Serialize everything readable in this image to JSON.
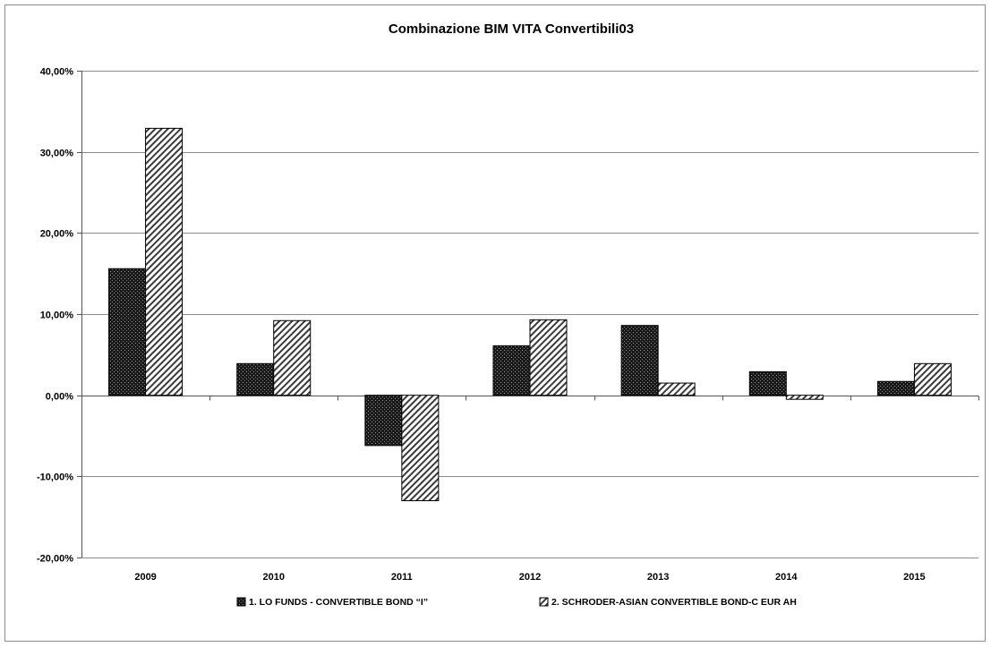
{
  "chart_data": {
    "type": "bar",
    "title": "Combinazione BIM VITA Convertibili03",
    "xlabel": "",
    "ylabel": "",
    "categories": [
      "2009",
      "2010",
      "2011",
      "2012",
      "2013",
      "2014",
      "2015"
    ],
    "series": [
      {
        "name": "1. LO FUNDS - CONVERTIBLE BOND “I”",
        "values": [
          15.6,
          3.9,
          -6.2,
          6.1,
          8.6,
          2.9,
          1.7
        ],
        "pattern": "dark-dots"
      },
      {
        "name": "2. SCHRODER-ASIAN CONVERTIBLE BOND-C EUR AH",
        "values": [
          32.9,
          9.2,
          -13.0,
          9.3,
          1.5,
          -0.5,
          3.9
        ],
        "pattern": "diagonal-hatch"
      }
    ],
    "ylim": [
      -20,
      40
    ],
    "yticks": [
      40,
      30,
      20,
      10,
      0,
      -10,
      -20
    ],
    "ytick_labels": [
      "40,00%",
      "30,00%",
      "20,00%",
      "10,00%",
      "0,00%",
      "-10,00%",
      "-20,00%"
    ],
    "grid": "horizontal",
    "legend_position": "bottom",
    "colors": {
      "bar_outline": "#000000",
      "dark_fill": "#1a1a1a",
      "grid": "#8c8c8c"
    }
  }
}
